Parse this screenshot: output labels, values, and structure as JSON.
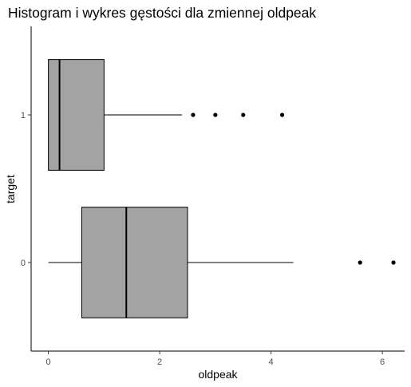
{
  "chart_data": {
    "type": "boxplot",
    "orientation": "horizontal",
    "title": "Histogram i wykres gęstości dla zmiennej oldpeak",
    "xlabel": "oldpeak",
    "ylabel": "target",
    "xlim": [
      -0.31,
      6.4
    ],
    "x_ticks": [
      0,
      2,
      4,
      6
    ],
    "categories": [
      "0",
      "1"
    ],
    "boxes": [
      {
        "category": "0",
        "whisker_low": 0.0,
        "q1": 0.6,
        "median": 1.4,
        "q3": 2.5,
        "whisker_high": 4.4,
        "outliers": [
          5.6,
          6.2
        ]
      },
      {
        "category": "1",
        "whisker_low": 0.0,
        "q1": 0.0,
        "median": 0.2,
        "q3": 1.0,
        "whisker_high": 2.4,
        "outliers": [
          2.6,
          3.0,
          3.5,
          4.2
        ]
      }
    ],
    "box_fill": "#a3a3a3",
    "grid": false,
    "legend": "none"
  }
}
